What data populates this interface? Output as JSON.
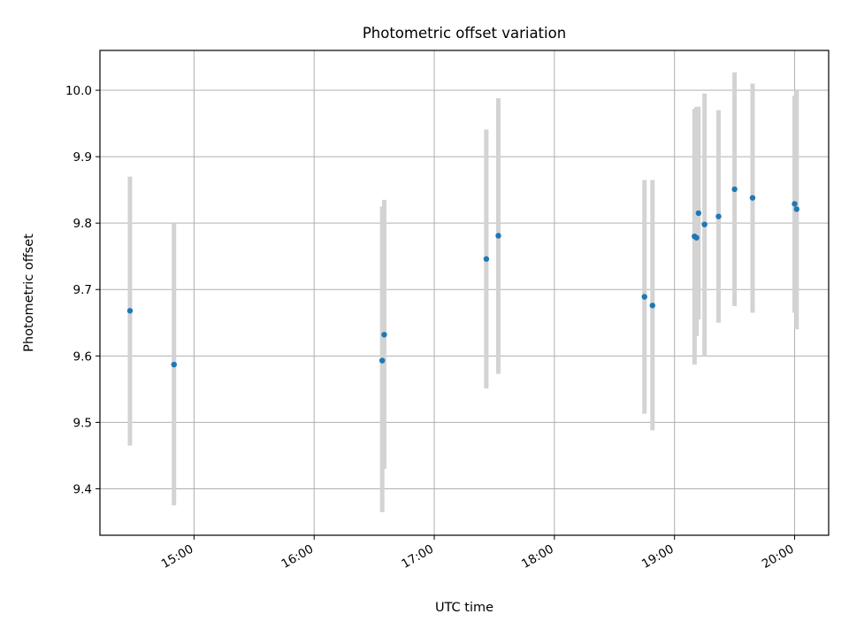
{
  "chart_data": {
    "type": "scatter",
    "title": "Photometric offset variation",
    "xlabel": "UTC time",
    "ylabel": "Photometric offset",
    "grid": true,
    "xlim": [
      "14:13",
      "20:17"
    ],
    "ylim": [
      9.33,
      10.06
    ],
    "x_ticks": [
      "15:00",
      "16:00",
      "17:00",
      "18:00",
      "19:00",
      "20:00"
    ],
    "y_ticks": [
      "9.4",
      "9.5",
      "9.6",
      "9.7",
      "9.8",
      "9.9",
      "10.0"
    ],
    "point_color": "#1f77b4",
    "errorbar_color": "#d3d3d3",
    "points": [
      {
        "time": "14:28",
        "y": 9.668,
        "low": 9.465,
        "high": 9.87
      },
      {
        "time": "14:50",
        "y": 9.587,
        "low": 9.375,
        "high": 9.8
      },
      {
        "time": "16:34",
        "y": 9.593,
        "low": 9.365,
        "high": 9.825
      },
      {
        "time": "16:35",
        "y": 9.632,
        "low": 9.43,
        "high": 9.835
      },
      {
        "time": "17:26",
        "y": 9.746,
        "low": 9.551,
        "high": 9.941
      },
      {
        "time": "17:32",
        "y": 9.781,
        "low": 9.573,
        "high": 9.988
      },
      {
        "time": "18:45",
        "y": 9.689,
        "low": 9.513,
        "high": 9.865
      },
      {
        "time": "18:49",
        "y": 9.676,
        "low": 9.488,
        "high": 9.865
      },
      {
        "time": "19:10",
        "y": 9.78,
        "low": 9.587,
        "high": 9.972
      },
      {
        "time": "19:11",
        "y": 9.778,
        "low": 9.63,
        "high": 9.975
      },
      {
        "time": "19:12",
        "y": 9.815,
        "low": 9.655,
        "high": 9.975
      },
      {
        "time": "19:15",
        "y": 9.798,
        "low": 9.6,
        "high": 9.995
      },
      {
        "time": "19:22",
        "y": 9.81,
        "low": 9.65,
        "high": 9.97
      },
      {
        "time": "19:30",
        "y": 9.851,
        "low": 9.675,
        "high": 10.027
      },
      {
        "time": "19:39",
        "y": 9.838,
        "low": 9.665,
        "high": 10.01
      },
      {
        "time": "20:00",
        "y": 9.829,
        "low": 9.665,
        "high": 9.992
      },
      {
        "time": "20:01",
        "y": 9.821,
        "low": 9.64,
        "high": 10.0
      }
    ]
  }
}
